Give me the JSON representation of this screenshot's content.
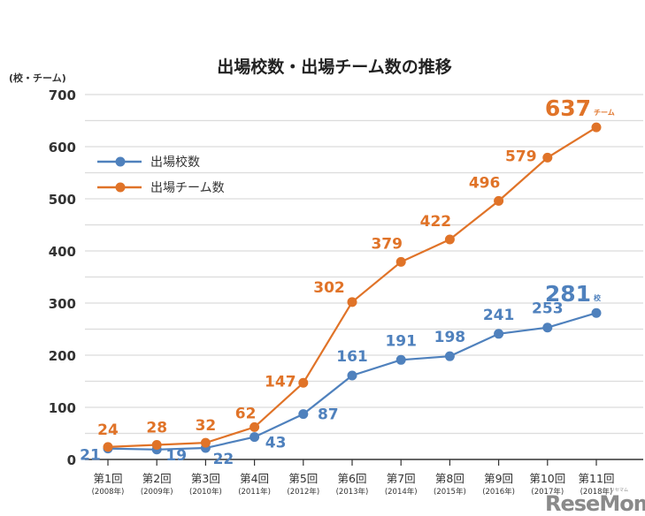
{
  "chart_data": {
    "type": "line",
    "title": "出場校数・出場チーム数の推移",
    "ylabel": "(校・チーム)",
    "xlabel": "",
    "ylim": [
      0,
      700
    ],
    "yticks": [
      0,
      100,
      200,
      300,
      400,
      500,
      600,
      700
    ],
    "minor_grid_step": 50,
    "grid": true,
    "legend_position": "top-left",
    "categories": [
      "第1回",
      "第2回",
      "第3回",
      "第4回",
      "第5回",
      "第6回",
      "第7回",
      "第8回",
      "第9回",
      "第10回",
      "第11回"
    ],
    "category_years": [
      "(2008年)",
      "(2009年)",
      "(2010年)",
      "(2011年)",
      "(2012年)",
      "(2013年)",
      "(2014年)",
      "(2015年)",
      "(2016年)",
      "(2017年)",
      "(2018年)"
    ],
    "series": [
      {
        "name": "出場校数",
        "color": "#4f81bd",
        "values": [
          21,
          19,
          22,
          43,
          87,
          161,
          191,
          198,
          241,
          253,
          281
        ],
        "last_label_suffix": "校"
      },
      {
        "name": "出場チーム数",
        "color": "#e07328",
        "values": [
          24,
          28,
          32,
          62,
          147,
          302,
          379,
          422,
          496,
          579,
          637
        ],
        "last_label_suffix": "チーム"
      }
    ]
  },
  "watermark": {
    "text": "ReseMom",
    "small_text": "リセマム"
  }
}
